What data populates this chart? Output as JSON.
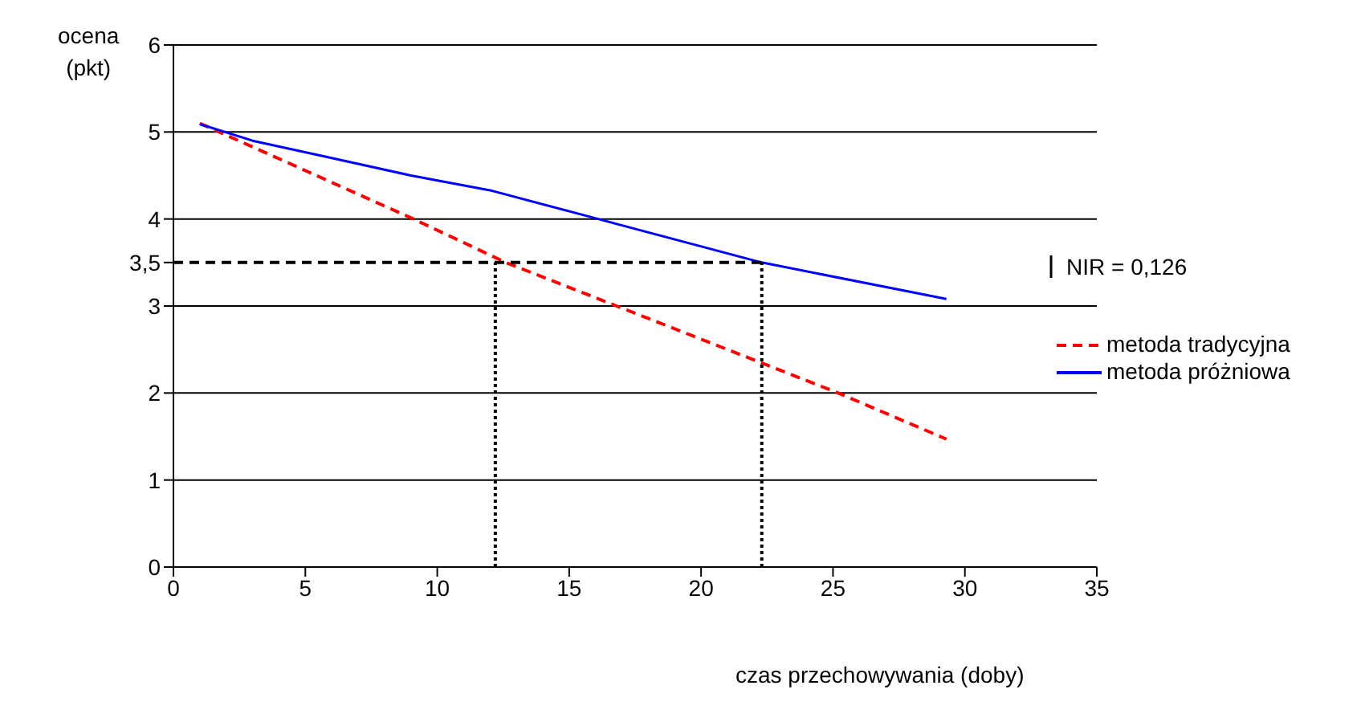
{
  "chart_data": {
    "type": "line",
    "xlabel": "czas przechowywania (doby)",
    "ylabel": "ocena (pkt)",
    "xlim": [
      0,
      35
    ],
    "xticks": [
      0,
      5,
      10,
      15,
      20,
      25,
      30,
      35
    ],
    "ylim": [
      0,
      6
    ],
    "yticks": [
      0,
      1,
      2,
      3,
      {
        "value": 3.5,
        "label": "3,5"
      },
      4,
      5,
      6
    ],
    "grid": "y",
    "legend": "right",
    "marker": "none",
    "annotations": [
      "NIR = 0,126"
    ],
    "series": [
      {
        "name": "metoda tradycyjna",
        "color": "#ff0000",
        "line_style": "dashed",
        "x": [
          1,
          9.1,
          12.6,
          16.8,
          25.2,
          29.3
        ],
        "values": [
          5.1,
          4,
          3.5,
          3,
          2,
          1.47
        ]
      },
      {
        "name": "metoda próżniowa",
        "color": "#0000ff",
        "line_style": "solid",
        "x": [
          1,
          3,
          6,
          9,
          12,
          16.1,
          22.3,
          29.3
        ],
        "values": [
          5.09,
          4.9,
          4.7,
          4.5,
          4.33,
          4,
          3.5,
          3.08
        ]
      },
      {
        "color": "#000000",
        "line_style": "dashed",
        "x": [
          0,
          22.3
        ],
        "values": [
          3.5,
          3.5
        ]
      },
      {
        "color": "#000000",
        "line_style": "dotted",
        "x": [
          12.2,
          12.2
        ],
        "values": [
          0,
          3.5
        ]
      },
      {
        "color": "#000000",
        "line_style": "dotted",
        "x": [
          22.3,
          22.3
        ],
        "values": [
          0,
          3.5
        ]
      }
    ]
  }
}
